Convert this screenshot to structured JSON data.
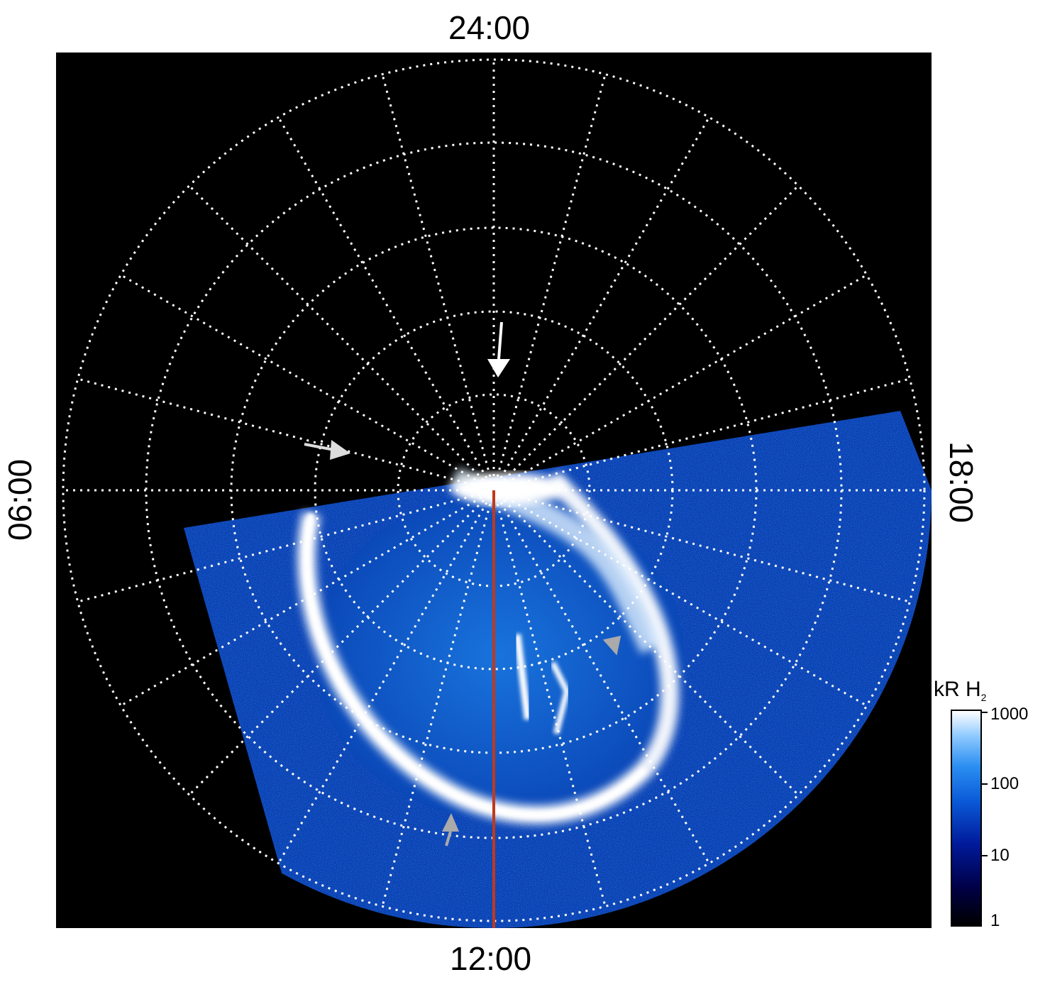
{
  "local_time_labels": {
    "top": "24:00",
    "bottom": "12:00",
    "left": "06:00",
    "right": "18:00"
  },
  "colorbar": {
    "title": "kR H",
    "title_subscript": "2",
    "ticks": [
      "1000",
      "100",
      "10",
      "1"
    ],
    "colors": [
      "#000000",
      "#000048",
      "#001a9a",
      "#0a5ad8",
      "#2a8ef0",
      "#8cc8ff",
      "#ffffff"
    ]
  },
  "colors": {
    "background": "#000000",
    "grid": "#ffffff",
    "meridian_line": "#c0391b",
    "arrow_white": "#ffffff",
    "arrow_gray": "#aaaaaa"
  }
}
